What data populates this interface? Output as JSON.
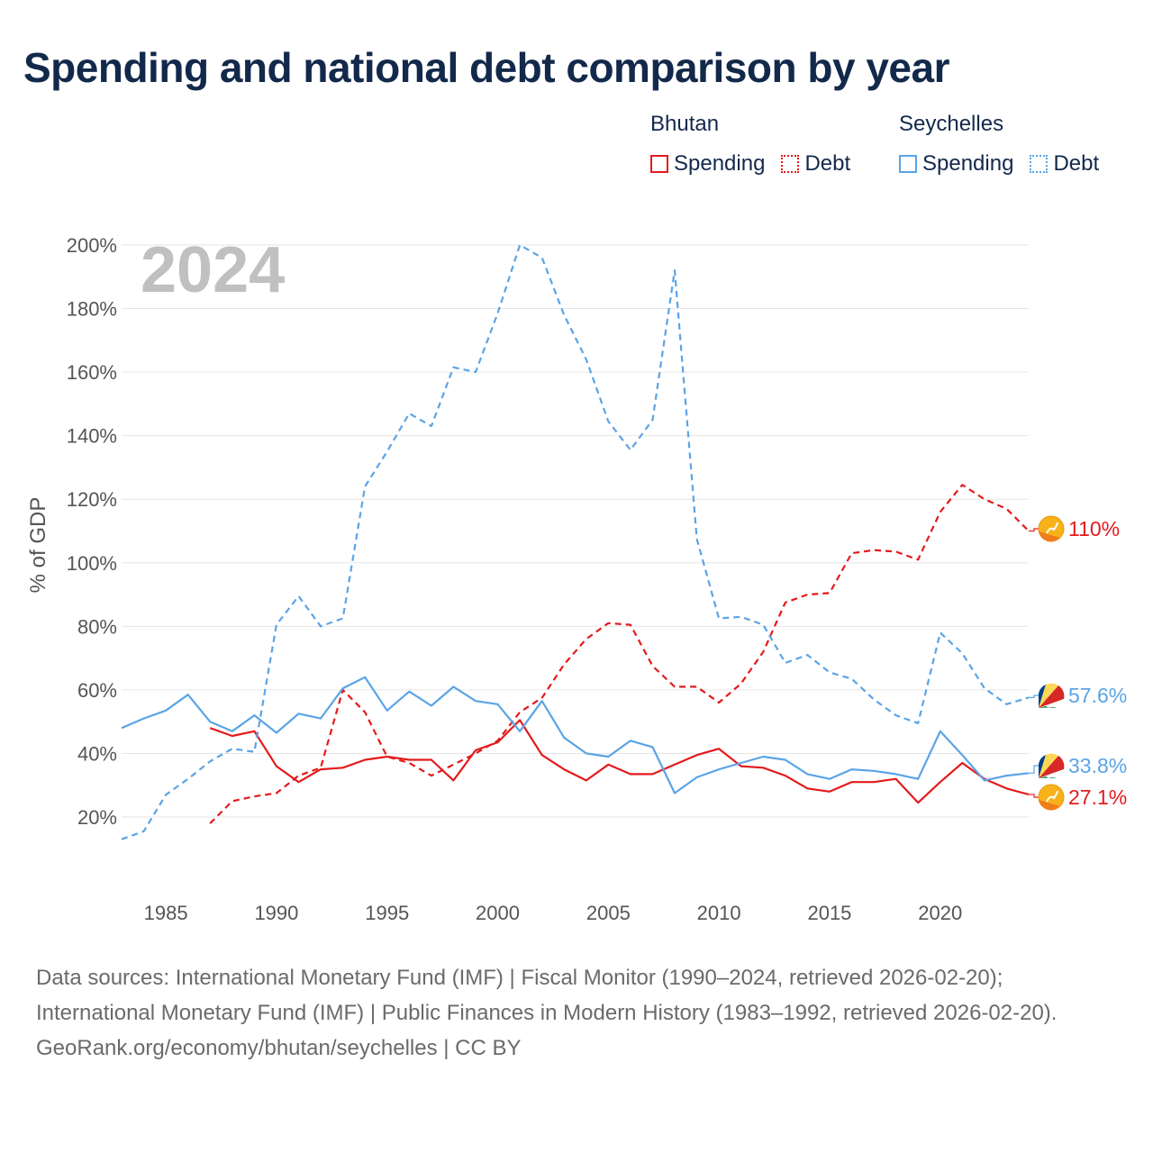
{
  "title": "Spending and national debt comparison by year",
  "legend": {
    "groups": [
      {
        "country": "Bhutan",
        "color": "#e41a1c",
        "items": [
          {
            "label": "Spending",
            "style": "solid"
          },
          {
            "label": "Debt",
            "style": "dotted"
          }
        ]
      },
      {
        "country": "Seychelles",
        "color": "#5aa4e6",
        "items": [
          {
            "label": "Spending",
            "style": "solid"
          },
          {
            "label": "Debt",
            "style": "dotted"
          }
        ]
      }
    ]
  },
  "chart_data": {
    "type": "line",
    "year_label": "2024",
    "ylabel": "% of GDP",
    "xlabel": "",
    "xlim": [
      1983,
      2024
    ],
    "ylim": [
      10,
      205
    ],
    "y_ticks": [
      20,
      40,
      60,
      80,
      100,
      120,
      140,
      160,
      180,
      200
    ],
    "y_tick_labels": [
      "20%",
      "40%",
      "60%",
      "80%",
      "100%",
      "120%",
      "140%",
      "160%",
      "180%",
      "200%"
    ],
    "x_ticks": [
      1985,
      1990,
      1995,
      2000,
      2005,
      2010,
      2015,
      2020
    ],
    "x_tick_labels": [
      "1985",
      "1990",
      "1995",
      "2000",
      "2005",
      "2010",
      "2015",
      "2020"
    ],
    "series": [
      {
        "name": "Bhutan Spending",
        "country": "Bhutan",
        "kind": "spending",
        "color": "#e41a1c",
        "dash": "solid",
        "end_label": "27.1%",
        "x": [
          1987,
          1988,
          1989,
          1990,
          1991,
          1992,
          1993,
          1994,
          1995,
          1996,
          1997,
          1998,
          1999,
          2000,
          2001,
          2002,
          2003,
          2004,
          2005,
          2006,
          2007,
          2008,
          2009,
          2010,
          2011,
          2012,
          2013,
          2014,
          2015,
          2016,
          2017,
          2018,
          2019,
          2020,
          2021,
          2022,
          2023,
          2024
        ],
        "values": [
          48,
          45.5,
          47,
          36,
          31,
          35,
          35.5,
          38,
          39,
          38,
          38,
          31.5,
          41,
          43.5,
          50.5,
          39.5,
          35,
          31.5,
          36.5,
          33.5,
          33.5,
          36.5,
          39.5,
          41.5,
          36,
          35.5,
          33,
          29,
          28,
          31,
          31,
          32,
          24.5,
          31,
          37,
          32,
          29,
          27.1
        ]
      },
      {
        "name": "Bhutan Debt",
        "country": "Bhutan",
        "kind": "debt",
        "color": "#e41a1c",
        "dash": "dashed",
        "end_label": "110%",
        "x": [
          1987,
          1988,
          1989,
          1990,
          1991,
          1992,
          1993,
          1994,
          1995,
          1996,
          1997,
          1998,
          1999,
          2000,
          2001,
          2002,
          2003,
          2004,
          2005,
          2006,
          2007,
          2008,
          2009,
          2010,
          2011,
          2012,
          2013,
          2014,
          2015,
          2016,
          2017,
          2018,
          2019,
          2020,
          2021,
          2022,
          2023,
          2024
        ],
        "values": [
          18,
          25,
          26.5,
          27.5,
          33,
          35.5,
          60,
          53,
          39,
          37,
          33,
          36.5,
          40,
          44,
          53,
          57.5,
          68,
          76,
          81,
          80.5,
          67.5,
          61,
          61,
          56,
          62,
          72,
          87.5,
          90,
          90.5,
          103,
          104,
          103.5,
          101,
          116,
          124.5,
          120,
          117,
          110
        ]
      },
      {
        "name": "Seychelles Spending",
        "country": "Seychelles",
        "kind": "spending",
        "color": "#5aa4e6",
        "dash": "solid",
        "end_label": "33.8%",
        "x": [
          1983,
          1984,
          1985,
          1986,
          1987,
          1988,
          1989,
          1990,
          1991,
          1992,
          1993,
          1994,
          1995,
          1996,
          1997,
          1998,
          1999,
          2000,
          2001,
          2002,
          2003,
          2004,
          2005,
          2006,
          2007,
          2008,
          2009,
          2010,
          2011,
          2012,
          2013,
          2014,
          2015,
          2016,
          2017,
          2018,
          2019,
          2020,
          2021,
          2022,
          2023,
          2024
        ],
        "values": [
          48,
          51,
          53.5,
          58.5,
          50,
          47,
          52,
          46.5,
          52.5,
          51,
          60.5,
          64,
          53.5,
          59.5,
          55,
          61,
          56.5,
          55.5,
          47,
          56.5,
          45,
          40,
          39,
          44,
          42,
          27.5,
          32.5,
          35,
          37,
          39,
          38,
          33.5,
          32,
          35,
          34.5,
          33.5,
          32,
          47,
          39.5,
          31.5,
          33,
          33.8
        ]
      },
      {
        "name": "Seychelles Debt",
        "country": "Seychelles",
        "kind": "debt",
        "color": "#5aa4e6",
        "dash": "dashed",
        "end_label": "57.6%",
        "x": [
          1983,
          1984,
          1985,
          1986,
          1987,
          1988,
          1989,
          1990,
          1991,
          1992,
          1993,
          1994,
          1995,
          1996,
          1997,
          1998,
          1999,
          2000,
          2001,
          2002,
          2003,
          2004,
          2005,
          2006,
          2007,
          2008,
          2009,
          2010,
          2011,
          2012,
          2013,
          2014,
          2015,
          2016,
          2017,
          2018,
          2019,
          2020,
          2021,
          2022,
          2023,
          2024
        ],
        "values": [
          13,
          15.5,
          27,
          32,
          37.5,
          41.5,
          40.5,
          80.5,
          89.5,
          80,
          82.5,
          124,
          135,
          147,
          143,
          161.5,
          160,
          178.5,
          200,
          196,
          178,
          164,
          144.5,
          135.5,
          145,
          192,
          107.5,
          82.5,
          83,
          80.5,
          68.5,
          71,
          65.5,
          63.5,
          57,
          52,
          49.5,
          78,
          71.5,
          60.5,
          55.5,
          57.6
        ]
      }
    ]
  },
  "footer": {
    "sources": "Data sources: International Monetary Fund (IMF) | Fiscal Monitor (1990–2024, retrieved 2026-02-20); International Monetary Fund (IMF) | Public Finances in Modern History (1983–1992, retrieved 2026-02-20).",
    "credit": "GeoRank.org/economy/bhutan/seychelles | CC BY"
  }
}
